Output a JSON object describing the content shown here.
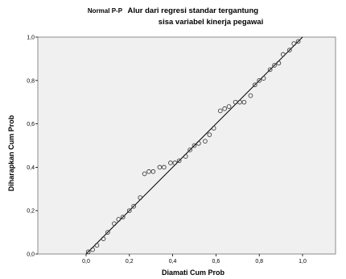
{
  "chart_data": {
    "type": "scatter",
    "title_prefix": "Normal P-P",
    "title": "Alur dari regresi standar tergantung",
    "subtitle": "sisa variabel kinerja pegawai",
    "xlabel": "Diamati Cum Prob",
    "ylabel": "Diharapkan Cum Prob",
    "xlim": [
      0.0,
      1.0
    ],
    "ylim": [
      0.0,
      1.0
    ],
    "x_ticks": [
      "0,0",
      "0,2",
      "0,4",
      "0,6",
      "0,8",
      "1,0"
    ],
    "y_ticks": [
      "0,0",
      "0,2",
      "0,4",
      "0,6",
      "0,8",
      "1,0"
    ],
    "grid": false,
    "reference_line": [
      [
        0,
        0
      ],
      [
        1,
        1
      ]
    ],
    "colors": {
      "plot_background": "#f0f0f0",
      "marker": "#404040",
      "line": "#000000"
    },
    "points": [
      {
        "x": 0.01,
        "y": 0.01
      },
      {
        "x": 0.03,
        "y": 0.02
      },
      {
        "x": 0.05,
        "y": 0.04
      },
      {
        "x": 0.08,
        "y": 0.07
      },
      {
        "x": 0.1,
        "y": 0.1
      },
      {
        "x": 0.13,
        "y": 0.14
      },
      {
        "x": 0.15,
        "y": 0.16
      },
      {
        "x": 0.17,
        "y": 0.17
      },
      {
        "x": 0.2,
        "y": 0.2
      },
      {
        "x": 0.22,
        "y": 0.22
      },
      {
        "x": 0.25,
        "y": 0.26
      },
      {
        "x": 0.27,
        "y": 0.37
      },
      {
        "x": 0.29,
        "y": 0.38
      },
      {
        "x": 0.31,
        "y": 0.38
      },
      {
        "x": 0.34,
        "y": 0.4
      },
      {
        "x": 0.36,
        "y": 0.4
      },
      {
        "x": 0.39,
        "y": 0.42
      },
      {
        "x": 0.41,
        "y": 0.42
      },
      {
        "x": 0.43,
        "y": 0.43
      },
      {
        "x": 0.46,
        "y": 0.45
      },
      {
        "x": 0.48,
        "y": 0.48
      },
      {
        "x": 0.5,
        "y": 0.5
      },
      {
        "x": 0.52,
        "y": 0.51
      },
      {
        "x": 0.55,
        "y": 0.52
      },
      {
        "x": 0.57,
        "y": 0.55
      },
      {
        "x": 0.59,
        "y": 0.58
      },
      {
        "x": 0.62,
        "y": 0.66
      },
      {
        "x": 0.64,
        "y": 0.67
      },
      {
        "x": 0.66,
        "y": 0.68
      },
      {
        "x": 0.69,
        "y": 0.7
      },
      {
        "x": 0.71,
        "y": 0.7
      },
      {
        "x": 0.73,
        "y": 0.7
      },
      {
        "x": 0.76,
        "y": 0.73
      },
      {
        "x": 0.78,
        "y": 0.78
      },
      {
        "x": 0.8,
        "y": 0.8
      },
      {
        "x": 0.82,
        "y": 0.81
      },
      {
        "x": 0.85,
        "y": 0.85
      },
      {
        "x": 0.87,
        "y": 0.87
      },
      {
        "x": 0.89,
        "y": 0.88
      },
      {
        "x": 0.91,
        "y": 0.92
      },
      {
        "x": 0.94,
        "y": 0.94
      },
      {
        "x": 0.96,
        "y": 0.97
      },
      {
        "x": 0.98,
        "y": 0.98
      }
    ]
  }
}
